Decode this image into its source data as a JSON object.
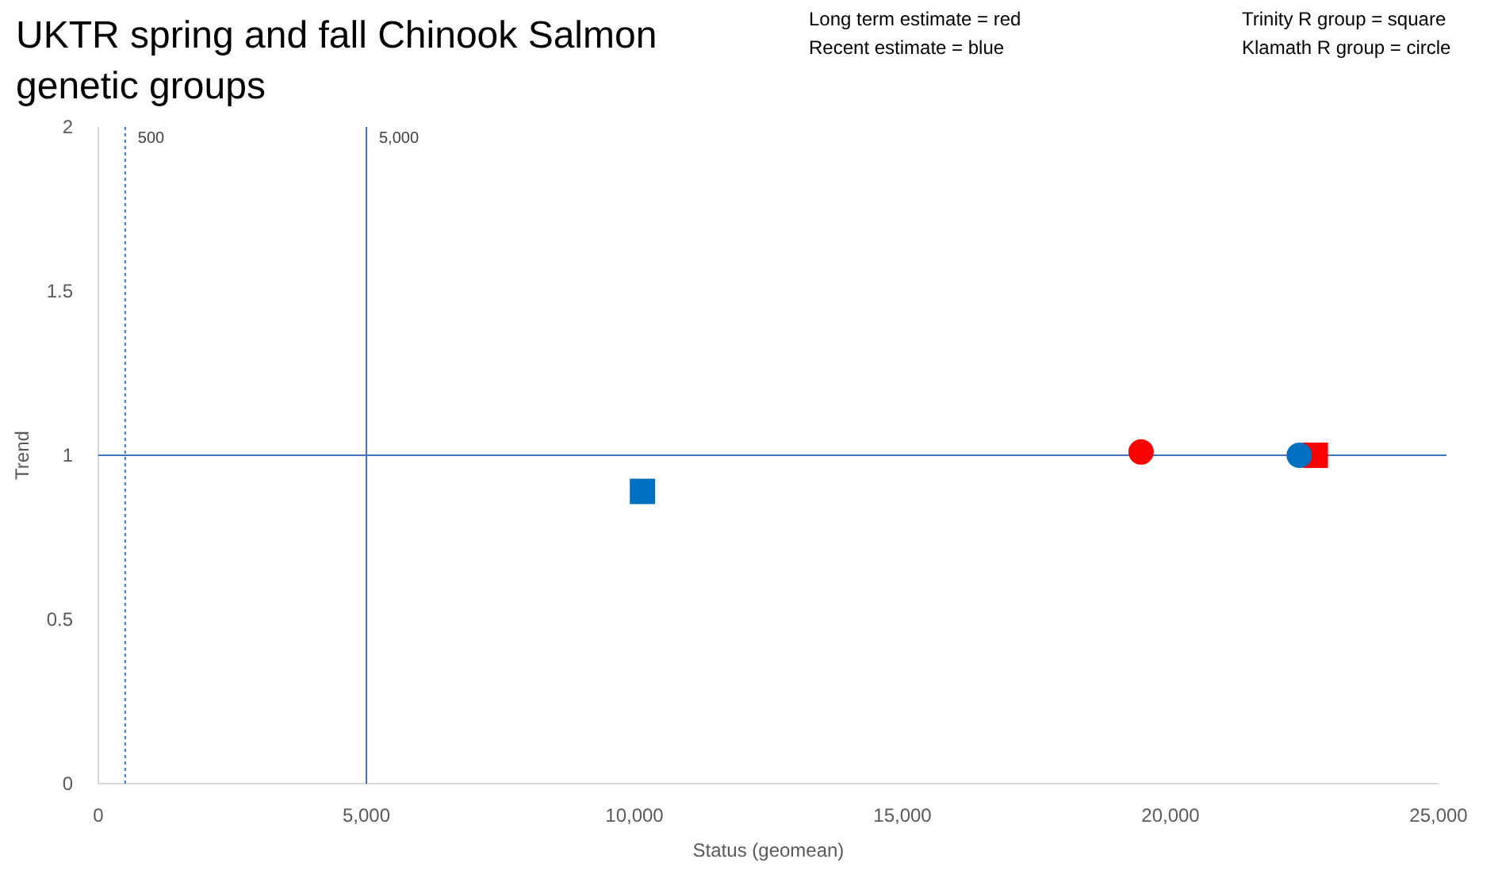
{
  "chart_data": {
    "type": "scatter",
    "title": "UKTR spring and fall Chinook Salmon genetic groups",
    "xlabel": "Status (geomean)",
    "ylabel": "Trend",
    "annotations": [
      "Long term estimate = red",
      "Recent estimate = blue",
      "Trinity R group = square",
      "Klamath R group = circle"
    ],
    "series": [
      {
        "color": "#0070c0",
        "marker": "square",
        "x": [
          10150
        ],
        "values": [
          0.89
        ]
      },
      {
        "color": "#ff0000",
        "marker": "square",
        "x": [
          22700
        ],
        "values": [
          1.0
        ]
      },
      {
        "color": "#ff0000",
        "marker": "circle",
        "x": [
          19450
        ],
        "values": [
          1.01
        ]
      },
      {
        "color": "#0070c0",
        "marker": "circle",
        "x": [
          22400
        ],
        "values": [
          1.0
        ]
      }
    ],
    "xlim": [
      0,
      25000
    ],
    "xticks": [
      {
        "value": 0,
        "label": "0"
      },
      {
        "value": 5000,
        "label": "5,000"
      },
      {
        "value": 10000,
        "label": "10,000"
      },
      {
        "value": 15000,
        "label": "15,000"
      },
      {
        "value": 20000,
        "label": "20,000"
      },
      {
        "value": 25000,
        "label": "25,000"
      }
    ],
    "ylim": [
      0,
      2
    ],
    "yticks": [
      0,
      0.5,
      1,
      1.5,
      2
    ],
    "ref_lines": [
      {
        "axis": "x",
        "value": 500,
        "label": "500",
        "line_style": "dotted",
        "color": "#4472c4"
      },
      {
        "axis": "x",
        "value": 5000,
        "label": "5,000",
        "line_style": "solid",
        "color": "#4472c4"
      },
      {
        "axis": "y",
        "value": 1,
        "line_style": "solid",
        "color": "#4472c4"
      }
    ],
    "grid": false
  }
}
